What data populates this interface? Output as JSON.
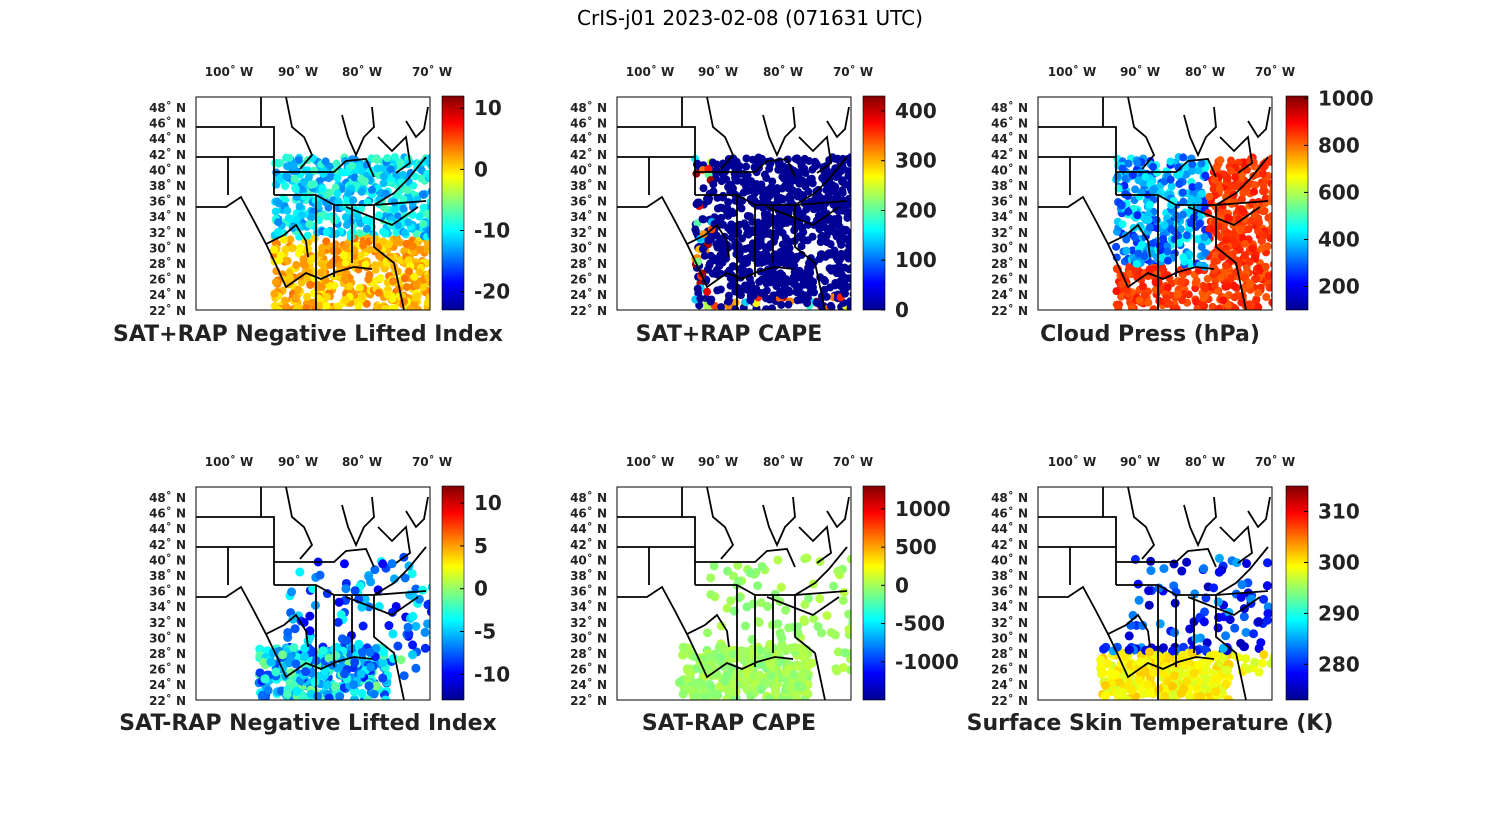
{
  "title": "CrIS-j01 2023-02-08 (071631 UTC)",
  "lon_labels": [
    "100˚ W",
    "90˚ W",
    "80˚ W",
    "70˚ W"
  ],
  "lat_labels": [
    "48˚ N",
    "46˚ N",
    "44˚ N",
    "42˚ N",
    "40˚ N",
    "38˚ N",
    "36˚ N",
    "34˚ N",
    "32˚ N",
    "30˚ N",
    "28˚ N",
    "26˚ N",
    "24˚ N",
    "22˚ N"
  ],
  "colormap": "jet",
  "panels": [
    {
      "title": "SAT+RAP Negative Lifted Index",
      "cmin": -23,
      "cmax": 12,
      "ticks": [
        10,
        0,
        -10,
        -20
      ]
    },
    {
      "title": "SAT+RAP CAPE",
      "cmin": 0,
      "cmax": 430,
      "ticks": [
        400,
        300,
        200,
        100,
        0
      ]
    },
    {
      "title": "Cloud Press (hPa)",
      "cmin": 100,
      "cmax": 1010,
      "ticks": [
        1000,
        800,
        600,
        400,
        200
      ]
    },
    {
      "title": "SAT-RAP Negative Lifted Index",
      "cmin": -13,
      "cmax": 12,
      "ticks": [
        10,
        5,
        0,
        -5,
        -10
      ]
    },
    {
      "title": "SAT-RAP CAPE",
      "cmin": -1500,
      "cmax": 1300,
      "ticks": [
        1000,
        500,
        0,
        -500,
        -1000
      ]
    },
    {
      "title": "Surface Skin Temperature (K)",
      "cmin": 273,
      "cmax": 315,
      "ticks": [
        310,
        300,
        290,
        280
      ]
    }
  ]
}
